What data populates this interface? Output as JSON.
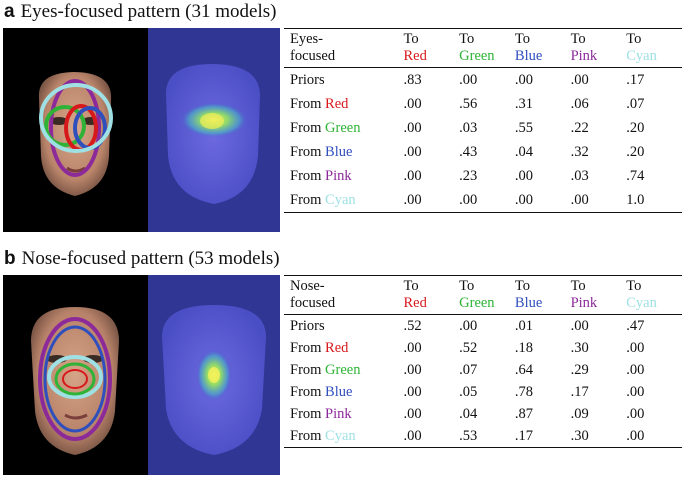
{
  "colors": {
    "red": "#d8191c",
    "green": "#2fb337",
    "blue": "#2f4fbd",
    "pink": "#8c2a9a",
    "cyan": "#9fe0e4"
  },
  "panel_a": {
    "letter": "a",
    "title": "Eyes-focused pattern (31 models)",
    "corner_line1": "Eyes-",
    "corner_line2": "focused",
    "to_word": "To",
    "from_word": "From",
    "columns": [
      "Red",
      "Green",
      "Blue",
      "Pink",
      "Cyan"
    ],
    "priors_label": "Priors",
    "priors": [
      ".83",
      ".00",
      ".00",
      ".00",
      ".17"
    ],
    "rows": [
      {
        "color": "Red",
        "values": [
          ".00",
          ".56",
          ".31",
          ".06",
          ".07"
        ]
      },
      {
        "color": "Green",
        "values": [
          ".00",
          ".03",
          ".55",
          ".22",
          ".20"
        ]
      },
      {
        "color": "Blue",
        "values": [
          ".00",
          ".43",
          ".04",
          ".32",
          ".20"
        ]
      },
      {
        "color": "Pink",
        "values": [
          ".00",
          ".23",
          ".00",
          ".03",
          ".74"
        ]
      },
      {
        "color": "Cyan",
        "values": [
          ".00",
          ".00",
          ".00",
          ".00",
          "1.0"
        ]
      }
    ]
  },
  "panel_b": {
    "letter": "b",
    "title": "Nose-focused pattern (53 models)",
    "corner_line1": "Nose-",
    "corner_line2": "focused",
    "to_word": "To",
    "from_word": "From",
    "columns": [
      "Red",
      "Green",
      "Blue",
      "Pink",
      "Cyan"
    ],
    "priors_label": "Priors",
    "priors": [
      ".52",
      ".00",
      ".01",
      ".00",
      ".47"
    ],
    "rows": [
      {
        "color": "Red",
        "values": [
          ".00",
          ".52",
          ".18",
          ".30",
          ".00"
        ]
      },
      {
        "color": "Green",
        "values": [
          ".00",
          ".07",
          ".64",
          ".29",
          ".00"
        ]
      },
      {
        "color": "Blue",
        "values": [
          ".00",
          ".05",
          ".78",
          ".17",
          ".00"
        ]
      },
      {
        "color": "Pink",
        "values": [
          ".00",
          ".04",
          ".87",
          ".09",
          ".00"
        ]
      },
      {
        "color": "Cyan",
        "values": [
          ".00",
          ".53",
          ".17",
          ".30",
          ".00"
        ]
      }
    ]
  }
}
